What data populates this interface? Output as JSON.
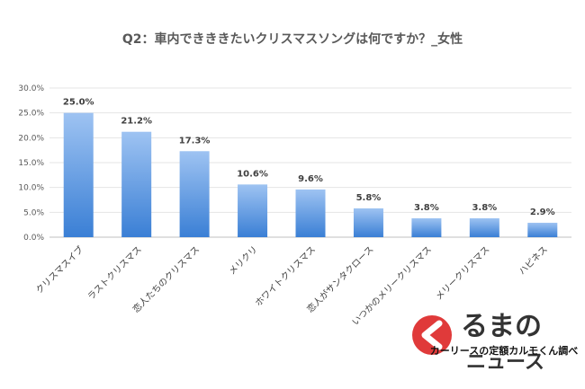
{
  "chart_data": {
    "type": "bar",
    "title": "Q2：車内できききたいクリスマスソングは何ですか？_女性",
    "categories": [
      "クリスマスイブ",
      "ラストクリスマス",
      "恋人たちのクリスマス",
      "メリクリ",
      "ホワイトクリスマス",
      "恋人がサンタクロース",
      "いつかのメリークリスマス",
      "メリークリスマス",
      "ハピネス"
    ],
    "values": [
      25.0,
      21.2,
      17.3,
      10.6,
      9.6,
      5.8,
      3.8,
      3.8,
      2.9
    ],
    "value_labels": [
      "25.0%",
      "21.2%",
      "17.3%",
      "10.6%",
      "9.6%",
      "5.8%",
      "3.8%",
      "3.8%",
      "2.9%"
    ],
    "ylim": [
      0,
      30
    ],
    "yticks": [
      "0.0%",
      "5.0%",
      "10.0%",
      "15.0%",
      "20.0%",
      "25.0%",
      "30.0%"
    ],
    "grid": true,
    "bar_color_top": "#9ec3f2",
    "bar_color_bottom": "#3a7fd5"
  },
  "credit": "カーリースの定額カルモくん調べ",
  "logo": {
    "line1": "るまの",
    "line2": "ニュース",
    "color": "#e03a3a"
  }
}
